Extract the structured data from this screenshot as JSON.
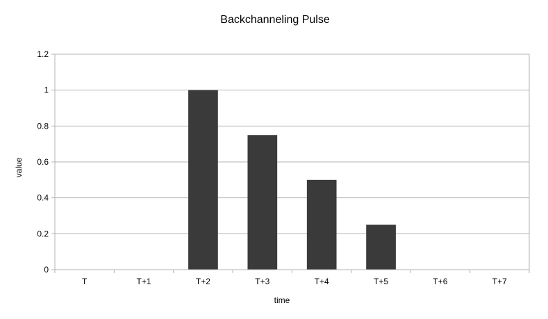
{
  "chart_data": {
    "type": "bar",
    "title": "Backchanneling Pulse",
    "xlabel": "time",
    "ylabel": "value",
    "categories": [
      "T",
      "T+1",
      "T+2",
      "T+3",
      "T+4",
      "T+5",
      "T+6",
      "T+7"
    ],
    "values": [
      0,
      0,
      1,
      0.75,
      0.5,
      0.25,
      0,
      0
    ],
    "ylim": [
      0,
      1.2
    ],
    "yticks": [
      "0",
      "0.2",
      "0.4",
      "0.6",
      "0.8",
      "1",
      "1.2"
    ],
    "grid": true,
    "legend": "none",
    "colors": {
      "bar": "#3a3a3a",
      "grid": "#b3b3b3",
      "axis": "#b3b3b3"
    }
  }
}
